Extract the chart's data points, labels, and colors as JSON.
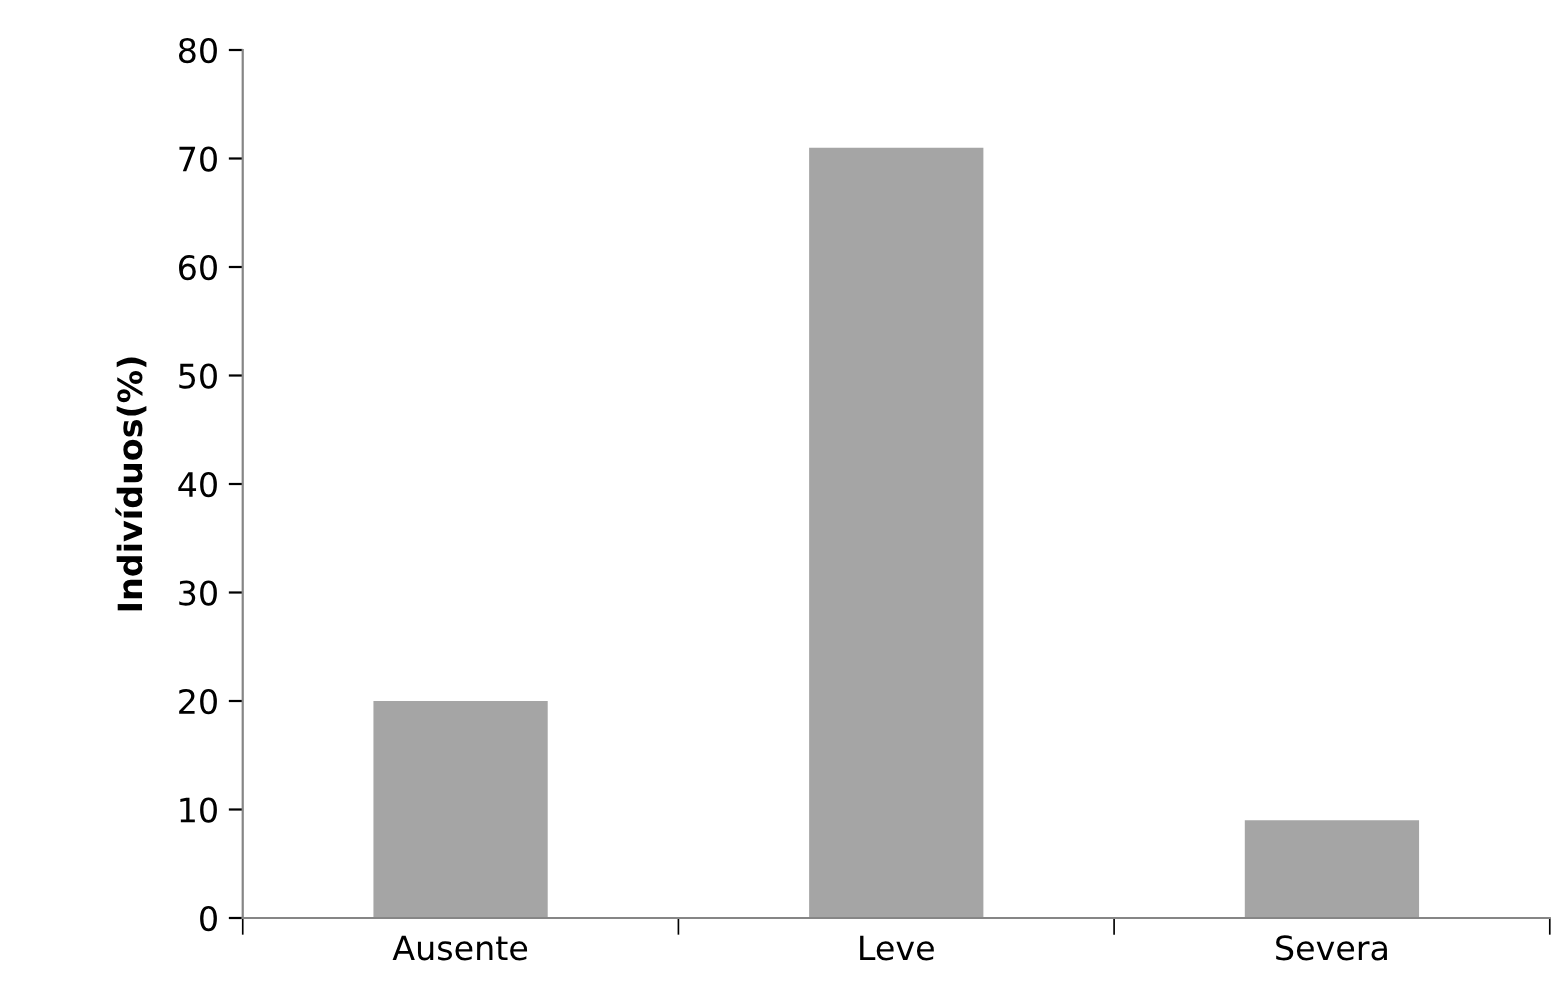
{
  "chart_data": {
    "type": "bar",
    "ylabel": "Indivíduos(%)",
    "categories": [
      "Ausente",
      "Leve",
      "Severa"
    ],
    "values": [
      20,
      71,
      9
    ],
    "color": "#a5a5a5",
    "ylim": [
      0,
      80
    ],
    "yticks": [
      0,
      10,
      20,
      30,
      40,
      50,
      60,
      70,
      80
    ],
    "grid": false
  }
}
